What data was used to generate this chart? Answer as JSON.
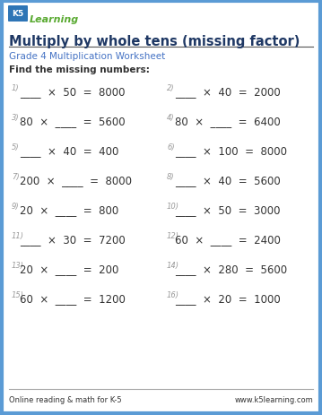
{
  "title": "Multiply by whole tens (missing factor)",
  "subtitle": "Grade 4 Multiplication Worksheet",
  "instruction": "Find the missing numbers:",
  "footer_left": "Online reading & math for K-5",
  "footer_right": "www.k5learning.com",
  "border_color": "#5b9bd5",
  "title_color": "#1f3864",
  "subtitle_color": "#4472c4",
  "problem_color": "#333333",
  "number_color": "#999999",
  "bg_color": "#ffffff",
  "problems_left": [
    {
      "num": "1)",
      "expr": "____  ×  50  =  8000"
    },
    {
      "num": "3)",
      "expr": "80  ×  ____  =  5600"
    },
    {
      "num": "5)",
      "expr": "____  ×  40  =  400"
    },
    {
      "num": "7)",
      "expr": "200  ×  ____  =  8000"
    },
    {
      "num": "9)",
      "expr": "20  ×  ____  =  800"
    },
    {
      "num": "11)",
      "expr": "____  ×  30  =  7200"
    },
    {
      "num": "13)",
      "expr": "20  ×  ____  =  200"
    },
    {
      "num": "15)",
      "expr": "60  ×  ____  =  1200"
    }
  ],
  "problems_right": [
    {
      "num": "2)",
      "expr": "____  ×  40  =  2000"
    },
    {
      "num": "4)",
      "expr": "80  ×  ____  =  6400"
    },
    {
      "num": "6)",
      "expr": "____  ×  100  =  8000"
    },
    {
      "num": "8)",
      "expr": "____  ×  40  =  5600"
    },
    {
      "num": "10)",
      "expr": "____  ×  50  =  3000"
    },
    {
      "num": "12)",
      "expr": "60  ×  ____  =  2400"
    },
    {
      "num": "14)",
      "expr": "____  ×  280  =  5600"
    },
    {
      "num": "16)",
      "expr": "____  ×  20  =  1000"
    }
  ]
}
